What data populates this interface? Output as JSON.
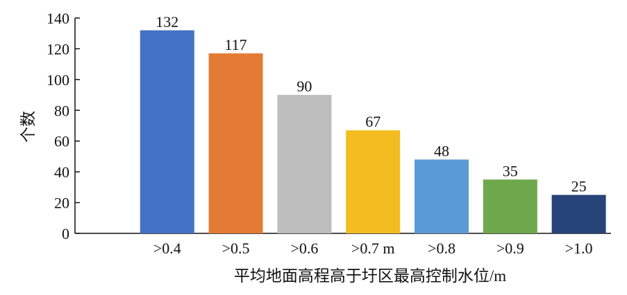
{
  "chart_data": {
    "type": "bar",
    "categories": [
      ">0.4",
      ">0.5",
      ">0.6",
      ">0.7 m",
      ">0.8",
      ">0.9",
      ">1.0"
    ],
    "values": [
      132,
      117,
      90,
      67,
      48,
      35,
      25
    ],
    "data_labels": [
      "132",
      "117",
      "90",
      "67",
      "48",
      "35",
      "25"
    ],
    "colors": [
      "#4472C4",
      "#E47B35",
      "#BDBDBD",
      "#F3BC21",
      "#5B9BD5",
      "#6FA84C",
      "#264478"
    ],
    "title": "",
    "xlabel": "平均地面高程高于圩区最高控制水位/m",
    "ylabel": "个数",
    "ylim": [
      0,
      140
    ],
    "yticks": [
      0,
      20,
      40,
      60,
      80,
      100,
      120,
      140
    ],
    "ytick_labels": [
      "0",
      "20",
      "40",
      "60",
      "80",
      "100",
      "120",
      "140"
    ],
    "grid": false,
    "legend": "none"
  }
}
